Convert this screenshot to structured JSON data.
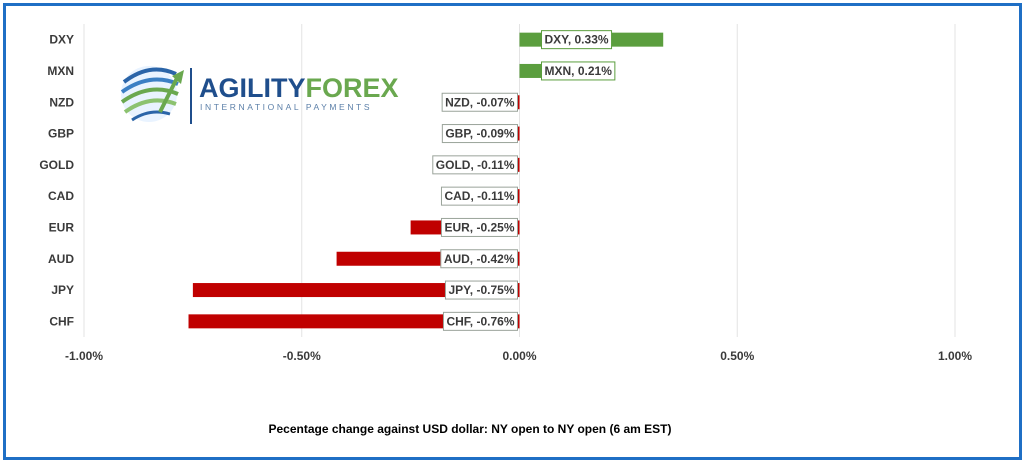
{
  "logo": {
    "word_a": "AGILITY",
    "word_b": "FOREX",
    "tagline": "INTERNATIONAL PAYMENTS",
    "colors": {
      "primary": "#1f4e8c",
      "accent": "#6aa84f"
    }
  },
  "chart_data": {
    "type": "bar",
    "orientation": "horizontal",
    "categories": [
      "DXY",
      "MXN",
      "NZD",
      "GBP",
      "GOLD",
      "CAD",
      "EUR",
      "AUD",
      "JPY",
      "CHF"
    ],
    "values": [
      0.33,
      0.21,
      -0.07,
      -0.09,
      -0.11,
      -0.11,
      -0.25,
      -0.42,
      -0.75,
      -0.76
    ],
    "data_labels": [
      "DXY, 0.33%",
      "MXN, 0.21%",
      "NZD, -0.07%",
      "GBP, -0.09%",
      "GOLD, -0.11%",
      "CAD, -0.11%",
      "EUR, -0.25%",
      "AUD, -0.42%",
      "JPY, -0.75%",
      "CHF, -0.76%"
    ],
    "xlim": [
      -1.0,
      1.0
    ],
    "xticks": [
      -1.0,
      -0.5,
      0.0,
      0.5,
      1.0
    ],
    "xtick_labels": [
      "-1.00%",
      "-0.50%",
      "0.00%",
      "0.50%",
      "1.00%"
    ],
    "xlabel": "Pecentage change against USD dollar:  NY open to NY open  (6 am EST)",
    "grid": true,
    "colors": {
      "positive": "#5b9e3e",
      "negative": "#c00000",
      "label_border_positive": "#5b9e3e",
      "label_border_negative": "#9aa39a",
      "grid": "#e3e3e3",
      "frame": "#1f6fc5"
    }
  }
}
